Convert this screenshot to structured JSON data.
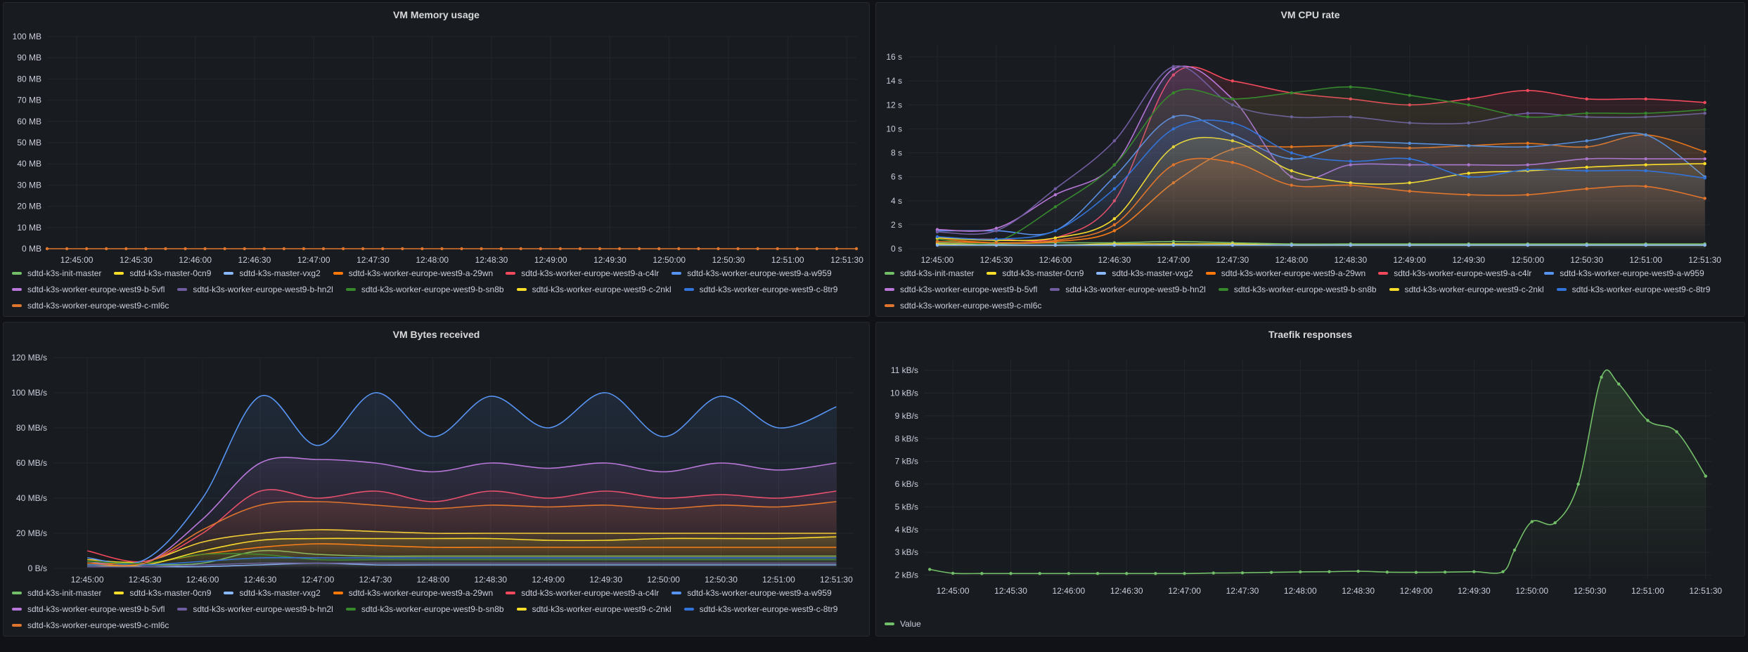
{
  "panels": {
    "memory": {
      "title": "VM Memory usage"
    },
    "cpu": {
      "title": "VM CPU rate"
    },
    "bytes": {
      "title": "VM Bytes received"
    },
    "traefik": {
      "title": "Traefik responses"
    }
  },
  "series_names": [
    "sdtd-k3s-init-master",
    "sdtd-k3s-master-0cn9",
    "sdtd-k3s-master-vxg2",
    "sdtd-k3s-worker-europe-west9-a-29wn",
    "sdtd-k3s-worker-europe-west9-a-c4lr",
    "sdtd-k3s-worker-europe-west9-a-w959",
    "sdtd-k3s-worker-europe-west9-b-5vfl",
    "sdtd-k3s-worker-europe-west9-b-hn2l",
    "sdtd-k3s-worker-europe-west9-b-sn8b",
    "sdtd-k3s-worker-europe-west9-c-2nkl",
    "sdtd-k3s-worker-europe-west9-c-8tr9",
    "sdtd-k3s-worker-europe-west9-c-ml6c"
  ],
  "series_colors": [
    "#73bf69",
    "#fade2a",
    "#8ab8ff",
    "#ff780a",
    "#f2495c",
    "#5794f2",
    "#b877d9",
    "#705da0",
    "#37872d",
    "#fade2a",
    "#3274d9",
    "#e0752d"
  ],
  "chart_data": [
    {
      "id": "memory",
      "type": "line",
      "title": "VM Memory usage",
      "x_ticks": [
        "12:45:00",
        "12:45:30",
        "12:46:00",
        "12:46:30",
        "12:47:00",
        "12:47:30",
        "12:48:00",
        "12:48:30",
        "12:49:00",
        "12:49:30",
        "12:50:00",
        "12:50:30",
        "12:51:00",
        "12:51:30"
      ],
      "y_ticks": [
        "0 MB",
        "10 MB",
        "20 MB",
        "30 MB",
        "40 MB",
        "50 MB",
        "60 MB",
        "70 MB",
        "80 MB",
        "90 MB",
        "100 MB"
      ],
      "ylim": [
        0,
        100
      ],
      "series_note": "all series at 0 MB",
      "x_range": [
        "12:44:45",
        "12:51:35"
      ],
      "values": [
        0,
        0,
        0,
        0,
        0,
        0,
        0,
        0,
        0,
        0,
        0,
        0,
        0,
        0,
        0,
        0,
        0,
        0,
        0,
        0,
        0,
        0,
        0,
        0,
        0,
        0,
        0,
        0,
        0,
        0,
        0,
        0,
        0,
        0,
        0,
        0,
        0,
        0,
        0,
        0,
        0,
        0
      ]
    },
    {
      "id": "cpu",
      "type": "line",
      "title": "VM CPU rate",
      "x_ticks": [
        "12:45:00",
        "12:45:30",
        "12:46:00",
        "12:46:30",
        "12:47:00",
        "12:47:30",
        "12:48:00",
        "12:48:30",
        "12:49:00",
        "12:49:30",
        "12:50:00",
        "12:50:30",
        "12:51:00",
        "12:51:30"
      ],
      "y_ticks": [
        "0 s",
        "2 s",
        "4 s",
        "6 s",
        "8 s",
        "10 s",
        "12 s",
        "14 s",
        "16 s"
      ],
      "ylim": [
        0,
        17
      ],
      "x_minutes": [
        0,
        0.5,
        1,
        1.5,
        2,
        2.5,
        3,
        3.5,
        4,
        4.5,
        5,
        5.5,
        6,
        6.5
      ],
      "series": [
        {
          "name": "sdtd-k3s-init-master",
          "values": [
            0.5,
            0.4,
            0.5,
            0.5,
            0.6,
            0.5,
            0.4,
            0.4,
            0.4,
            0.4,
            0.4,
            0.4,
            0.4,
            0.4
          ]
        },
        {
          "name": "sdtd-k3s-master-0cn9",
          "values": [
            0.4,
            0.3,
            0.3,
            0.4,
            0.4,
            0.4,
            0.3,
            0.3,
            0.3,
            0.3,
            0.3,
            0.3,
            0.3,
            0.3
          ]
        },
        {
          "name": "sdtd-k3s-master-vxg2",
          "values": [
            0.3,
            0.3,
            0.3,
            0.3,
            0.3,
            0.3,
            0.3,
            0.3,
            0.3,
            0.3,
            0.3,
            0.3,
            0.3,
            0.3
          ]
        },
        {
          "name": "sdtd-k3s-worker-europe-west9-a-29wn",
          "values": [
            0.8,
            0.5,
            0.6,
            1.5,
            5.5,
            8.3,
            8.5,
            8.6,
            8.4,
            8.6,
            8.8,
            8.5,
            9.5,
            8.1
          ]
        },
        {
          "name": "sdtd-k3s-worker-europe-west9-a-c4lr",
          "values": [
            0.9,
            0.8,
            0.9,
            4.0,
            14.5,
            14.0,
            13.0,
            12.5,
            12.0,
            12.5,
            13.2,
            12.5,
            12.5,
            12.2
          ]
        },
        {
          "name": "sdtd-k3s-worker-europe-west9-a-w959",
          "values": [
            1.5,
            1.5,
            1.5,
            6.0,
            11.0,
            9.5,
            7.5,
            8.8,
            8.8,
            8.6,
            8.5,
            9.0,
            9.5,
            6.0
          ]
        },
        {
          "name": "sdtd-k3s-worker-europe-west9-b-5vfl",
          "values": [
            1.6,
            1.7,
            4.5,
            7.0,
            15.0,
            12.5,
            6.0,
            7.0,
            7.0,
            7.0,
            7.0,
            7.5,
            7.5,
            7.5
          ]
        },
        {
          "name": "sdtd-k3s-worker-europe-west9-b-hn2l",
          "values": [
            1.4,
            1.5,
            5.0,
            9.0,
            15.2,
            12.0,
            11.0,
            11.0,
            10.5,
            10.5,
            11.3,
            11.0,
            11.0,
            11.3
          ]
        },
        {
          "name": "sdtd-k3s-worker-europe-west9-b-sn8b",
          "values": [
            0.8,
            0.6,
            3.5,
            7.0,
            13.0,
            12.5,
            13.0,
            13.5,
            12.8,
            12.0,
            11.0,
            11.3,
            11.3,
            11.6
          ]
        },
        {
          "name": "sdtd-k3s-worker-europe-west9-c-2nkl",
          "values": [
            0.9,
            0.7,
            0.9,
            2.5,
            8.5,
            9.0,
            6.5,
            5.5,
            5.5,
            6.3,
            6.5,
            6.8,
            7.0,
            7.1
          ]
        },
        {
          "name": "sdtd-k3s-worker-europe-west9-c-8tr9",
          "values": [
            1.0,
            0.8,
            1.5,
            5.0,
            10.0,
            10.5,
            8.0,
            7.3,
            7.5,
            6.0,
            6.6,
            6.5,
            6.5,
            5.9
          ]
        },
        {
          "name": "sdtd-k3s-worker-europe-west9-c-ml6c",
          "values": [
            0.6,
            0.5,
            0.7,
            2.0,
            7.0,
            7.2,
            5.3,
            5.3,
            4.8,
            4.5,
            4.5,
            5.0,
            5.2,
            4.2
          ]
        }
      ]
    },
    {
      "id": "bytes",
      "type": "line",
      "title": "VM Bytes received",
      "x_ticks": [
        "12:45:00",
        "12:45:30",
        "12:46:00",
        "12:46:30",
        "12:47:00",
        "12:47:30",
        "12:48:00",
        "12:48:30",
        "12:49:00",
        "12:49:30",
        "12:50:00",
        "12:50:30",
        "12:51:00",
        "12:51:30"
      ],
      "y_ticks": [
        "0 B/s",
        "20 MB/s",
        "40 MB/s",
        "60 MB/s",
        "80 MB/s",
        "100 MB/s",
        "120 MB/s"
      ],
      "ylim": [
        0,
        120
      ],
      "x_minutes": [
        0,
        0.5,
        1,
        1.5,
        2,
        2.5,
        3,
        3.5,
        4,
        4.5,
        5,
        5.5,
        6,
        6.5
      ],
      "series": [
        {
          "name": "sdtd-k3s-init-master",
          "values": [
            2,
            2,
            3,
            10,
            8,
            7,
            7,
            7,
            7,
            7,
            7,
            7,
            7,
            7
          ]
        },
        {
          "name": "sdtd-k3s-master-0cn9",
          "values": [
            5,
            4,
            15,
            20,
            22,
            21,
            20,
            20,
            20,
            20,
            20,
            20,
            20,
            20
          ]
        },
        {
          "name": "sdtd-k3s-master-vxg2",
          "values": [
            1,
            1,
            1,
            2,
            3,
            2,
            2,
            2,
            2,
            2,
            2,
            2,
            2,
            2
          ]
        },
        {
          "name": "sdtd-k3s-worker-europe-west9-a-29wn",
          "values": [
            3,
            3,
            8,
            12,
            14,
            13,
            12,
            12,
            12,
            12,
            12,
            12,
            12,
            12
          ]
        },
        {
          "name": "sdtd-k3s-worker-europe-west9-a-c4lr",
          "values": [
            10,
            4,
            20,
            44,
            40,
            44,
            38,
            44,
            40,
            44,
            40,
            42,
            40,
            44
          ]
        },
        {
          "name": "sdtd-k3s-worker-europe-west9-a-w959",
          "values": [
            6,
            5,
            40,
            98,
            70,
            100,
            75,
            98,
            80,
            100,
            75,
            98,
            80,
            92
          ]
        },
        {
          "name": "sdtd-k3s-worker-europe-west9-b-5vfl",
          "values": [
            4,
            3,
            28,
            60,
            62,
            60,
            55,
            60,
            57,
            60,
            55,
            60,
            56,
            60
          ]
        },
        {
          "name": "sdtd-k3s-worker-europe-west9-b-hn2l",
          "values": [
            1,
            1,
            2,
            3,
            3,
            3,
            3,
            3,
            3,
            3,
            3,
            3,
            3,
            3
          ]
        },
        {
          "name": "sdtd-k3s-worker-europe-west9-b-sn8b",
          "values": [
            4,
            3,
            8,
            8,
            5,
            5,
            5,
            5,
            5,
            5,
            5,
            5,
            5,
            5
          ]
        },
        {
          "name": "sdtd-k3s-worker-europe-west9-c-2nkl",
          "values": [
            2,
            2,
            10,
            16,
            17,
            17,
            17,
            17,
            16,
            16,
            17,
            17,
            17,
            18
          ]
        },
        {
          "name": "sdtd-k3s-worker-europe-west9-c-8tr9",
          "values": [
            2,
            2,
            4,
            6,
            6,
            6,
            6,
            6,
            6,
            6,
            6,
            6,
            6,
            6
          ]
        },
        {
          "name": "sdtd-k3s-worker-europe-west9-c-ml6c",
          "values": [
            3,
            3,
            22,
            36,
            38,
            36,
            34,
            36,
            35,
            36,
            34,
            36,
            35,
            38
          ]
        }
      ]
    },
    {
      "id": "traefik",
      "type": "line",
      "title": "Traefik responses",
      "x_ticks": [
        "12:45:00",
        "12:45:30",
        "12:46:00",
        "12:46:30",
        "12:47:00",
        "12:47:30",
        "12:48:00",
        "12:48:30",
        "12:49:00",
        "12:49:30",
        "12:50:00",
        "12:50:30",
        "12:51:00",
        "12:51:30"
      ],
      "y_ticks": [
        "2 kB/s",
        "3 kB/s",
        "4 kB/s",
        "5 kB/s",
        "6 kB/s",
        "7 kB/s",
        "8 kB/s",
        "9 kB/s",
        "10 kB/s",
        "11 kB/s"
      ],
      "ylim": [
        1.8,
        11.5
      ],
      "series": [
        {
          "name": "Value",
          "x_minutes": [
            -0.2,
            0,
            0.25,
            0.5,
            0.75,
            1,
            1.25,
            1.5,
            1.75,
            2,
            2.25,
            2.5,
            2.75,
            3,
            3.25,
            3.5,
            3.75,
            4,
            4.25,
            4.5,
            4.75,
            4.85,
            5,
            5.2,
            5.4,
            5.6,
            5.75,
            6,
            6.25,
            6.5
          ],
          "values": [
            2.25,
            2.08,
            2.07,
            2.07,
            2.07,
            2.07,
            2.07,
            2.07,
            2.07,
            2.07,
            2.09,
            2.1,
            2.12,
            2.14,
            2.15,
            2.17,
            2.13,
            2.12,
            2.13,
            2.15,
            2.15,
            3.1,
            4.35,
            4.3,
            6.0,
            10.7,
            10.4,
            8.8,
            8.3,
            6.35
          ]
        }
      ]
    }
  ]
}
